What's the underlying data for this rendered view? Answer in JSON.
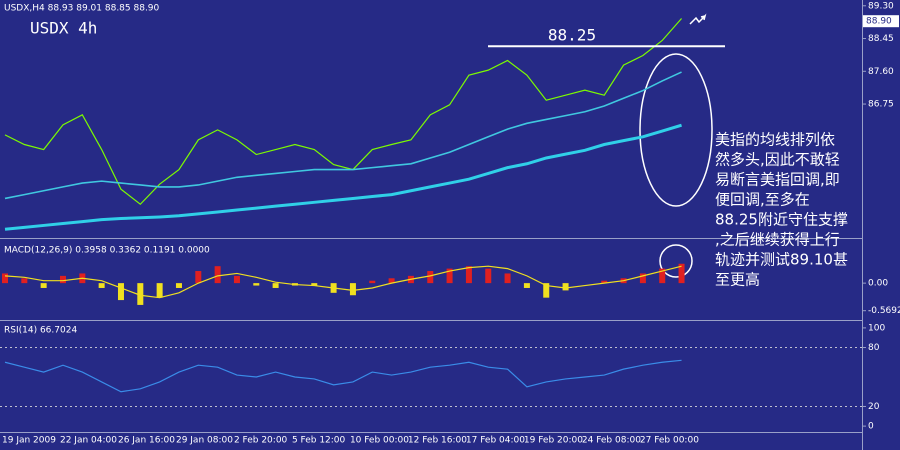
{
  "chart_data": [
    {
      "type": "line",
      "title": "USDX,H4 88.93 89.01 88.85 88.90",
      "subtitle": "USDX 4h",
      "ylim": [
        83.3,
        89.45
      ],
      "yticks": [
        {
          "value": 89.3,
          "label": "89.30"
        },
        {
          "value": 88.45,
          "label": "88.45"
        },
        {
          "value": 87.6,
          "label": "87.60"
        },
        {
          "value": 86.75,
          "label": "86.75"
        }
      ],
      "last_price": {
        "value": 88.9,
        "label": "88.90"
      },
      "level": 88.25,
      "annotation_lines": [
        "美指的均线排列依",
        "然多头,因此不敢轻",
        "易断言美指回调,即",
        "便回调,至多在",
        "88.25附近守住支撑",
        ",之后继续获得上行",
        "轨迹并测试89.10甚",
        "至更高"
      ],
      "series": [
        {
          "color": "#7cfc00",
          "values": [
            85.95,
            85.7,
            85.57,
            86.21,
            86.47,
            85.57,
            84.54,
            84.15,
            84.67,
            85.05,
            85.82,
            86.08,
            85.82,
            85.44,
            85.57,
            85.7,
            85.57,
            85.18,
            85.05,
            85.57,
            85.7,
            85.82,
            86.47,
            86.73,
            87.5,
            87.63,
            87.88,
            87.5,
            86.85,
            86.98,
            87.11,
            86.98,
            87.76,
            88.01,
            88.4,
            88.97
          ]
        },
        {
          "color": "#40c8e0",
          "values": [
            84.3,
            84.4,
            84.5,
            84.6,
            84.7,
            84.75,
            84.7,
            84.65,
            84.6,
            84.6,
            84.65,
            84.75,
            84.85,
            84.9,
            84.95,
            85.0,
            85.05,
            85.05,
            85.05,
            85.1,
            85.15,
            85.2,
            85.35,
            85.5,
            85.7,
            85.9,
            86.1,
            86.25,
            86.35,
            86.45,
            86.55,
            86.7,
            86.9,
            87.1,
            87.35,
            87.58
          ]
        },
        {
          "color": "#30d0e8",
          "values": [
            83.5,
            83.55,
            83.6,
            83.65,
            83.7,
            83.75,
            83.78,
            83.8,
            83.82,
            83.85,
            83.9,
            83.95,
            84.0,
            84.05,
            84.1,
            84.15,
            84.2,
            84.25,
            84.3,
            84.35,
            84.4,
            84.5,
            84.6,
            84.7,
            84.8,
            84.95,
            85.1,
            85.2,
            85.35,
            85.45,
            85.55,
            85.7,
            85.8,
            85.9,
            86.05,
            86.2
          ]
        }
      ]
    },
    {
      "type": "bar",
      "title": "MACD(12,26,9) 0.3958 0.3362 0.1191 0.0000",
      "ylim": [
        -0.72,
        0.87
      ],
      "yticks": [
        {
          "value": 0,
          "label": "0.00"
        },
        {
          "value": -0.5692,
          "label": "-0.5692"
        }
      ],
      "up_color": "#e02020",
      "down_color": "#f0e020",
      "values": [
        0.2,
        0.1,
        -0.1,
        0.15,
        0.2,
        -0.1,
        -0.35,
        -0.45,
        -0.3,
        -0.1,
        0.25,
        0.35,
        0.15,
        -0.05,
        -0.1,
        -0.05,
        -0.05,
        -0.2,
        -0.25,
        0.05,
        0.1,
        0.15,
        0.25,
        0.3,
        0.35,
        0.3,
        0.2,
        -0.1,
        -0.3,
        -0.15,
        0.0,
        0.05,
        0.1,
        0.2,
        0.3,
        0.4
      ],
      "line": {
        "color": "#f0e020",
        "values": [
          0.15,
          0.12,
          0.05,
          0.05,
          0.1,
          0.05,
          -0.1,
          -0.25,
          -0.3,
          -0.2,
          0.0,
          0.15,
          0.2,
          0.12,
          0.02,
          -0.03,
          -0.05,
          -0.1,
          -0.15,
          -0.1,
          0.0,
          0.08,
          0.15,
          0.25,
          0.32,
          0.35,
          0.3,
          0.15,
          -0.05,
          -0.1,
          -0.05,
          0.0,
          0.05,
          0.15,
          0.25,
          0.35
        ]
      }
    },
    {
      "type": "line",
      "title": "RSI(14) 66.7024",
      "ylim": [
        -6,
        106
      ],
      "yticks": [
        100,
        80,
        20,
        0
      ],
      "levels": [
        80,
        20
      ],
      "categories": [
        "19 Jan 2009",
        null,
        null,
        "22 Jan 04:00",
        null,
        null,
        "26 Jan 16:00",
        null,
        null,
        "29 Jan 08:00",
        null,
        null,
        "2 Feb 20:00",
        null,
        null,
        "5 Feb 12:00",
        null,
        null,
        "10 Feb 00:00",
        null,
        null,
        "12 Feb 16:00",
        null,
        null,
        "17 Feb 04:00",
        null,
        null,
        "19 Feb 20:00",
        null,
        null,
        "24 Feb 08:00",
        null,
        null,
        "27 Feb 00:00",
        null,
        null
      ],
      "series": [
        {
          "color": "#3a8ce8",
          "values": [
            65,
            60,
            55,
            62,
            55,
            45,
            35,
            38,
            45,
            55,
            62,
            60,
            52,
            50,
            55,
            50,
            48,
            42,
            45,
            55,
            52,
            55,
            60,
            62,
            65,
            60,
            58,
            40,
            45,
            48,
            50,
            52,
            58,
            62,
            65,
            67
          ]
        }
      ]
    }
  ]
}
